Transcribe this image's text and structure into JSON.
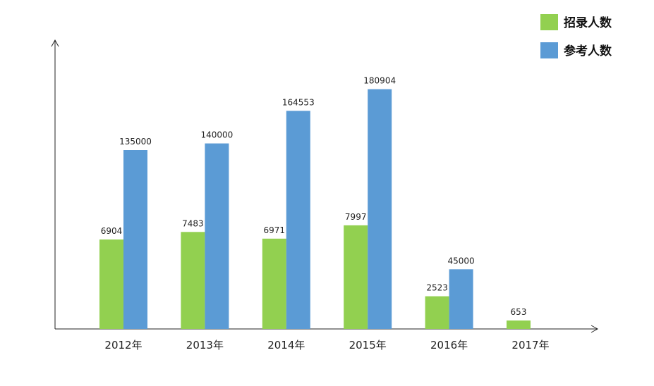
{
  "chart_data": {
    "type": "bar",
    "categories": [
      "2012年",
      "2013年",
      "2014年",
      "2015年",
      "2016年",
      "2017年"
    ],
    "series": [
      {
        "name": "招录人数",
        "color": "#92d050",
        "values": [
          6904,
          7483,
          6971,
          7997,
          2523,
          653
        ]
      },
      {
        "name": "参考人数",
        "color": "#5b9bd5",
        "values": [
          135000,
          140000,
          164553,
          180904,
          45000,
          null
        ]
      }
    ],
    "legend": "top-right",
    "grid": false,
    "y_axis_labels": false
  }
}
